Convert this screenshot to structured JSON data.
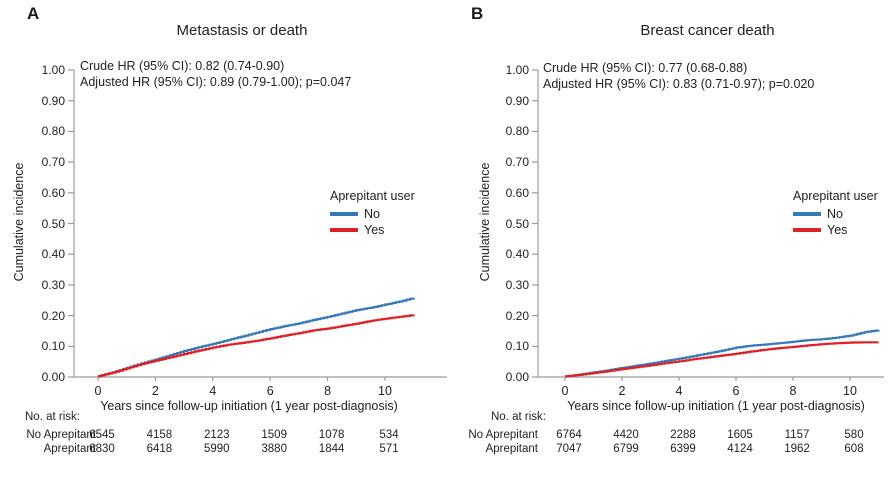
{
  "colors": {
    "no_line": "#3679B6",
    "yes_line": "#DE2127",
    "axis": "#9B9B9B",
    "text": "#1F1F1F"
  },
  "chart_data": [
    {
      "type": "line",
      "panel_label": "A",
      "title": "Metastasis or death",
      "xlabel": "Years since follow-up initiation (1 year post-diagnosis)",
      "ylabel": "Cumulative incidence",
      "xlim": [
        -0.85,
        12.1
      ],
      "ylim": [
        0,
        1.0
      ],
      "x_ticks": [
        0,
        2,
        4,
        6,
        8,
        10
      ],
      "y_ticks": [
        "0.00",
        "0.10",
        "0.20",
        "0.30",
        "0.40",
        "0.50",
        "0.60",
        "0.70",
        "0.80",
        "0.90",
        "1.00"
      ],
      "grid": false,
      "annotations": [
        "Crude HR (95% CI): 0.82 (0.74-0.90)",
        "Adjusted HR (95% CI): 0.89 (0.79-1.00); p=0.047"
      ],
      "legend": {
        "title": "Aprepitant user",
        "position": "right-middle",
        "items": [
          {
            "label": "No",
            "color": "#3679B6"
          },
          {
            "label": "Yes",
            "color": "#DE2127"
          }
        ]
      },
      "x": [
        0,
        0.5,
        1,
        1.5,
        2,
        2.5,
        3,
        3.5,
        4,
        4.5,
        5,
        5.5,
        6,
        6.5,
        7,
        7.5,
        8,
        8.5,
        9,
        9.5,
        10,
        10.5,
        11
      ],
      "series": [
        {
          "name": "No",
          "color": "#3679B6",
          "y": [
            0.003,
            0.015,
            0.03,
            0.044,
            0.057,
            0.071,
            0.085,
            0.097,
            0.108,
            0.12,
            0.132,
            0.144,
            0.156,
            0.166,
            0.175,
            0.186,
            0.196,
            0.207,
            0.218,
            0.226,
            0.236,
            0.246,
            0.258
          ]
        },
        {
          "name": "Yes",
          "color": "#DE2127",
          "y": [
            0.003,
            0.014,
            0.028,
            0.042,
            0.053,
            0.064,
            0.075,
            0.086,
            0.096,
            0.105,
            0.111,
            0.118,
            0.126,
            0.135,
            0.143,
            0.152,
            0.158,
            0.166,
            0.174,
            0.183,
            0.19,
            0.196,
            0.202
          ]
        }
      ],
      "risk_table": {
        "header": "No. at risk:",
        "time_points": [
          0,
          2,
          4,
          6,
          8,
          10
        ],
        "rows": [
          {
            "label": "No Aprepitant",
            "values": [
              "6545",
              "4158",
              "2123",
              "1509",
              "1078",
              "534"
            ]
          },
          {
            "label": "Aprepitant",
            "values": [
              "6830",
              "6418",
              "5990",
              "3880",
              "1844",
              "571"
            ]
          }
        ]
      }
    },
    {
      "type": "line",
      "panel_label": "B",
      "title": "Breast cancer death",
      "xlabel": "Years since follow-up initiation (1 year post-diagnosis)",
      "ylabel": "Cumulative incidence",
      "xlim": [
        -0.95,
        11.2
      ],
      "ylim": [
        0,
        1.0
      ],
      "x_ticks": [
        0,
        2,
        4,
        6,
        8,
        10
      ],
      "y_ticks": [
        "0.00",
        "0.10",
        "0.20",
        "0.30",
        "0.40",
        "0.50",
        "0.60",
        "0.70",
        "0.80",
        "0.90",
        "1.00"
      ],
      "grid": false,
      "annotations": [
        "Crude HR (95% CI): 0.77 (0.68-0.88)",
        "Adjusted HR (95% CI): 0.83 (0.71-0.97); p=0.020"
      ],
      "legend": {
        "title": "Aprepitant user",
        "position": "right-middle",
        "items": [
          {
            "label": "No",
            "color": "#3679B6"
          },
          {
            "label": "Yes",
            "color": "#DE2127"
          }
        ]
      },
      "x": [
        0,
        0.5,
        1,
        1.5,
        2,
        2.5,
        3,
        3.5,
        4,
        4.5,
        5,
        5.5,
        6,
        6.5,
        7,
        7.5,
        8,
        8.5,
        9,
        9.5,
        10,
        10.5,
        11
      ],
      "series": [
        {
          "name": "No",
          "color": "#3679B6",
          "y": [
            0.002,
            0.008,
            0.015,
            0.022,
            0.03,
            0.037,
            0.044,
            0.052,
            0.06,
            0.068,
            0.077,
            0.086,
            0.096,
            0.102,
            0.106,
            0.11,
            0.115,
            0.12,
            0.123,
            0.128,
            0.135,
            0.146,
            0.153
          ]
        },
        {
          "name": "Yes",
          "color": "#DE2127",
          "y": [
            0.002,
            0.007,
            0.013,
            0.019,
            0.026,
            0.032,
            0.038,
            0.045,
            0.051,
            0.058,
            0.064,
            0.07,
            0.076,
            0.083,
            0.089,
            0.094,
            0.098,
            0.103,
            0.107,
            0.11,
            0.112,
            0.113,
            0.113
          ]
        }
      ],
      "risk_table": {
        "header": "No. at risk:",
        "time_points": [
          0,
          2,
          4,
          6,
          8,
          10
        ],
        "rows": [
          {
            "label": "No Aprepitant",
            "values": [
              "6764",
              "4420",
              "2288",
              "1605",
              "1157",
              "580"
            ]
          },
          {
            "label": "Aprepitant",
            "values": [
              "7047",
              "6799",
              "6399",
              "4124",
              "1962",
              "608"
            ]
          }
        ]
      }
    }
  ]
}
